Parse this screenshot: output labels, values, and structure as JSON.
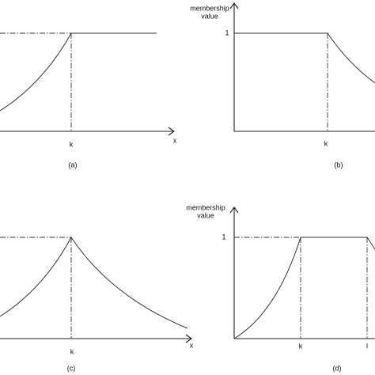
{
  "panels": [
    {
      "caption": "(a)",
      "x_label": "x",
      "ticks": [
        "k"
      ]
    },
    {
      "caption": "(b)",
      "y_label_lines": [
        "membership",
        "value"
      ],
      "y_tick": "1",
      "ticks": [
        "k"
      ]
    },
    {
      "caption": "(c)",
      "x_label": "x",
      "ticks": [
        "k"
      ]
    },
    {
      "caption": "(d)",
      "y_label_lines": [
        "membership",
        "value"
      ],
      "y_tick": "1",
      "ticks": [
        "k",
        "l"
      ]
    }
  ]
}
